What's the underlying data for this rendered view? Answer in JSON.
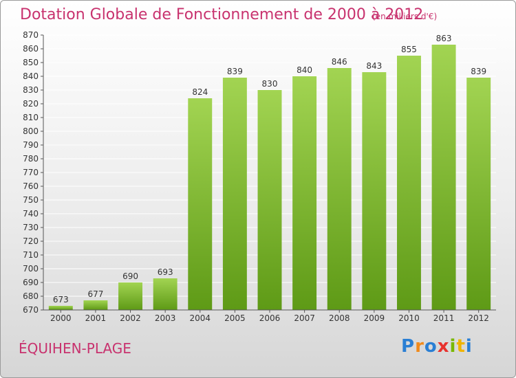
{
  "header": {
    "title": "Dotation Globale de Fonctionnement de 2000 à 2012",
    "unit_note": "(en milliers d'€)"
  },
  "footer": {
    "commune": "ÉQUIHEN-PLAGE",
    "logo_letters": [
      "P",
      "r",
      "o",
      "x",
      "i",
      "t",
      "i"
    ],
    "logo_colors": [
      "#2a7fd4",
      "#f08a1c",
      "#2a7fd4",
      "#e8322e",
      "#7ab800",
      "#f0b400",
      "#2a7fd4"
    ]
  },
  "colors": {
    "title": "#c8326e",
    "bar_light": "#a2d452",
    "bar_dark": "#5e9a16",
    "grid": "#ffffff",
    "axis_text": "#333333"
  },
  "chart_data": {
    "type": "bar",
    "title": "Dotation Globale de Fonctionnement de 2000 à 2012",
    "xlabel": "",
    "ylabel": "",
    "categories": [
      "2000",
      "2001",
      "2002",
      "2003",
      "2004",
      "2005",
      "2006",
      "2007",
      "2008",
      "2009",
      "2010",
      "2011",
      "2012"
    ],
    "values": [
      673,
      677,
      690,
      693,
      824,
      839,
      830,
      840,
      846,
      843,
      855,
      863,
      839
    ],
    "ylim": [
      670,
      870
    ],
    "ytick_step": 10,
    "grid": true,
    "legend": "none"
  }
}
